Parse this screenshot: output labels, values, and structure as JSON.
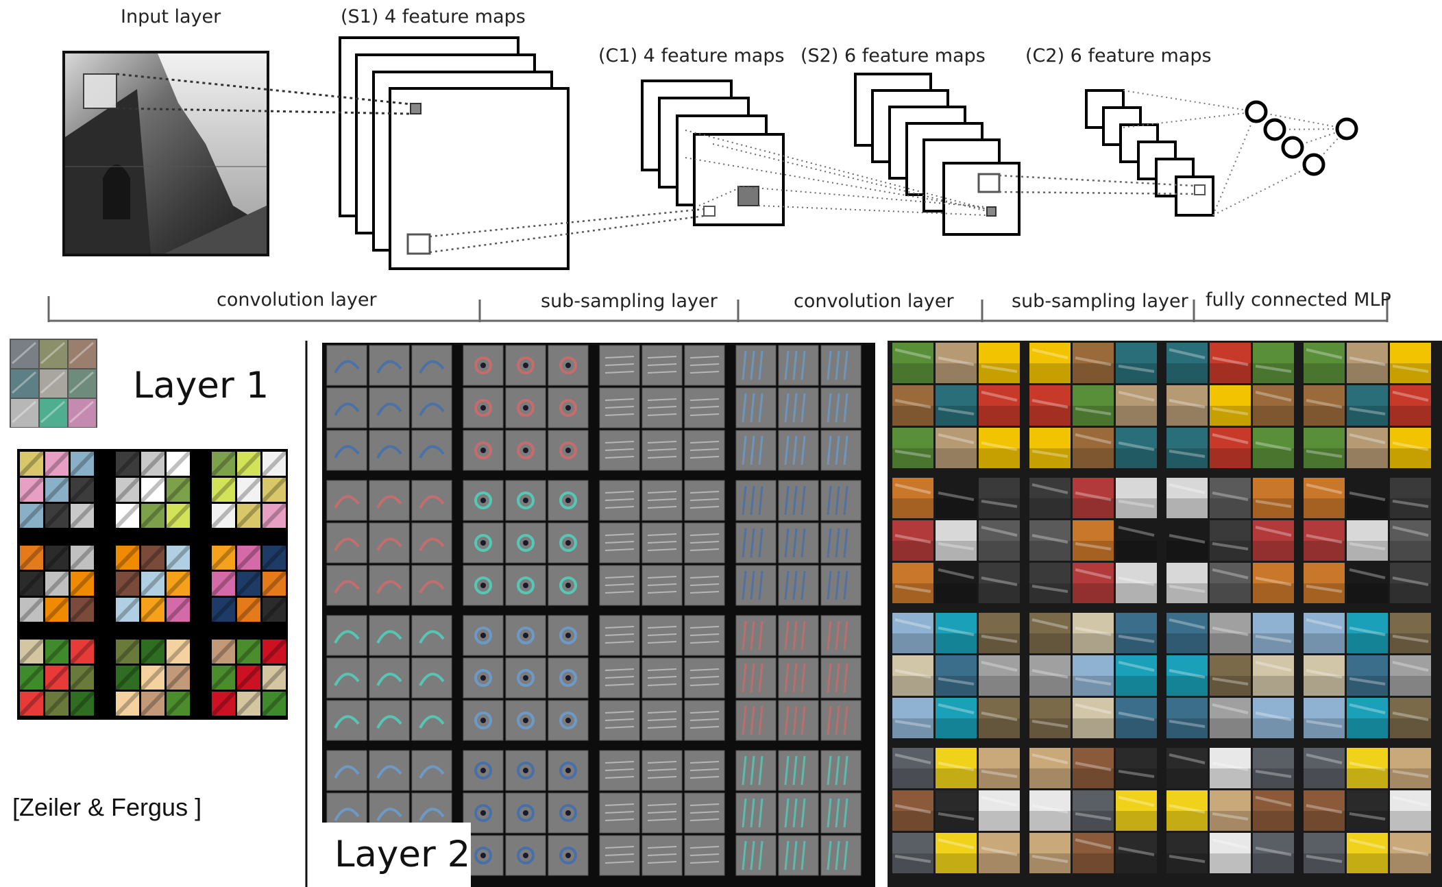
{
  "top": {
    "input_label": "Input layer",
    "s1_label": "(S1) 4 feature maps",
    "c1_label": "(C1) 4 feature maps",
    "s2_label": "(S2) 6 feature maps",
    "c2_label": "(C2) 6 feature maps"
  },
  "brackets": [
    "convolution layer",
    "sub-sampling layer",
    "convolution layer",
    "sub-sampling layer",
    "fully connected MLP"
  ],
  "bottom": {
    "layer1_label": "Layer 1",
    "layer2_label": "Layer 2",
    "citation": "[Zeiler & Fergus ]"
  },
  "colors": {
    "layer1_patches": [
      "#7a7f86",
      "#8b8f6a",
      "#9a7e6e",
      "#5d7f86",
      "#a9a6a0",
      "#6e8b7c",
      "#b7b7b7",
      "#4fae8f",
      "#c58ab0"
    ],
    "layer1_grid_groups": [
      [
        "#d9c86a",
        "#e7a0c4",
        "#8ab0c8",
        "#3c3c3c",
        "#c9c9c9",
        "#ffffff",
        "#7da04a",
        "#d2e35a",
        "#f2f2f2"
      ],
      [
        "#e47a1a",
        "#2b2b2b",
        "#c0c0c0",
        "#f08a00",
        "#7a4a3a",
        "#b0cfe3",
        "#f6a11a",
        "#d46aa8",
        "#1e3b68"
      ],
      [
        "#d4c6a0",
        "#3f8a2a",
        "#e93a3a",
        "#6a7a3a",
        "#2f6e22",
        "#f4d2a0",
        "#c29a7a",
        "#4b8d2d",
        "#cc1122"
      ]
    ],
    "layer2_tint": [
      "#3f6fb0",
      "#d46a6a",
      "#4fd6c0",
      "#6aa0d6"
    ],
    "layer3_groups": [
      [
        "#5a8f3a",
        "#b59a74",
        "#f2c300",
        "#9a6a3a",
        "#2a6e7a",
        "#c73a2a"
      ],
      [
        "#c9772a",
        "#1a1a1a",
        "#3a3a3a",
        "#b23a3a",
        "#d8d8d8",
        "#5a5a5a"
      ],
      [
        "#8fb2d2",
        "#1aa0b8",
        "#7a6a4a",
        "#d2c6a8",
        "#3a6e8a",
        "#a0a0a0"
      ],
      [
        "#5a5f66",
        "#f0d21a",
        "#c9a87a",
        "#8a5a3a",
        "#2a2a2a",
        "#e8e8e8"
      ]
    ]
  }
}
